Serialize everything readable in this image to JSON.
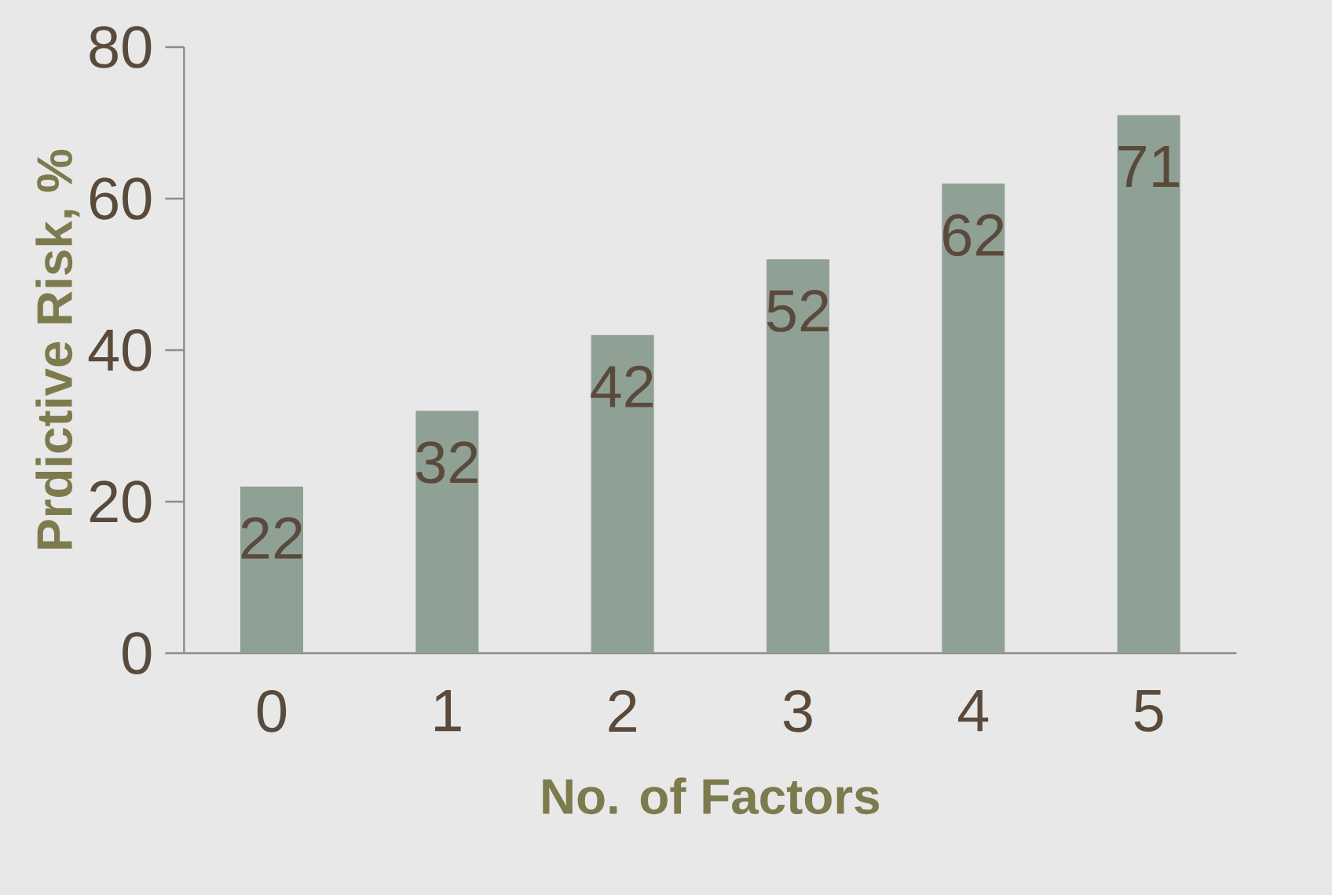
{
  "chart_data": {
    "type": "bar",
    "xlabel": "No. of Factors",
    "ylabel": "Prdictive Risk, %",
    "categories": [
      "0",
      "1",
      "2",
      "3",
      "4",
      "5"
    ],
    "values": [
      22,
      32,
      42,
      52,
      62,
      71
    ],
    "color": "#8fa094",
    "ylim": [
      0,
      80
    ],
    "yticks": [
      0,
      20,
      40,
      60,
      80
    ],
    "data_labels": true
  }
}
